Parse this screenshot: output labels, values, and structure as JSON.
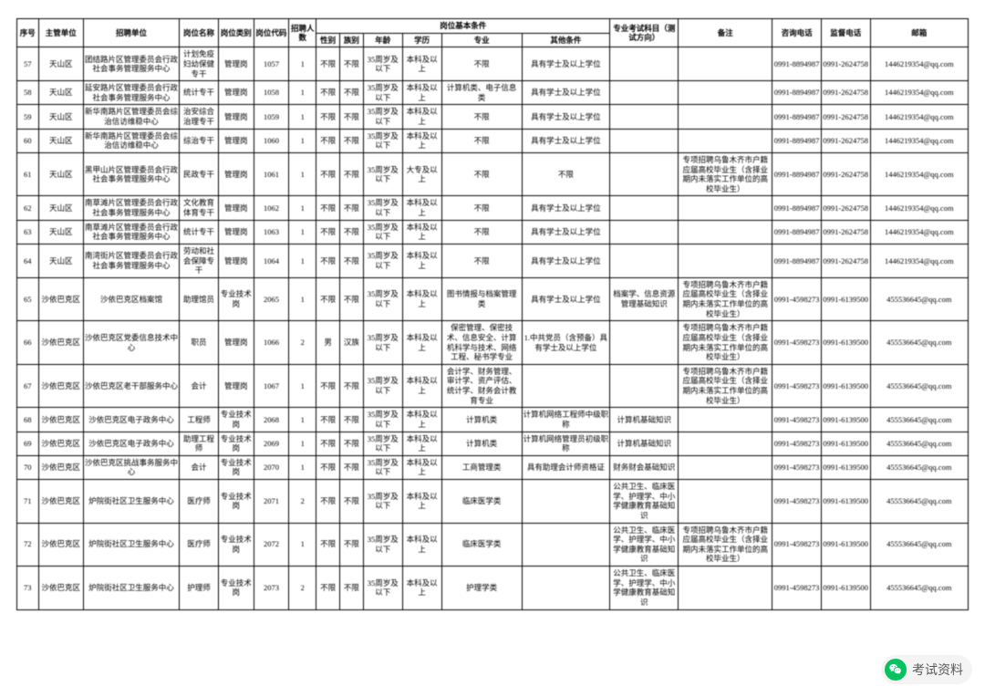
{
  "header": {
    "seq": "序号",
    "dept": "主管单位",
    "unit": "招聘单位",
    "pname": "岗位名称",
    "ptype": "岗位类别",
    "pcode": "岗位代码",
    "num": "招聘人数",
    "cond_group": "岗位基本条件",
    "sex": "性别",
    "ethn": "族别",
    "age": "年龄",
    "edu": "学历",
    "major": "专业",
    "other": "其他条件",
    "exam": "专业考试科目（测试方向）",
    "note": "备注",
    "tel1": "咨询电话",
    "tel2": "监督电话",
    "mail": "邮箱"
  },
  "rows": [
    {
      "seq": "57",
      "dept": "天山区",
      "unit": "团结路片区管理委员会行政社会事务管理服务中心",
      "pname": "计划免疫妇幼保健专干",
      "ptype": "管理岗",
      "pcode": "1057",
      "num": "1",
      "sex": "不限",
      "ethn": "不限",
      "age": "35周岁及以下",
      "edu": "本科及以上",
      "major": "不限",
      "other": "具有学士及以上学位",
      "exam": "",
      "note": "",
      "tel1": "0991-8894987",
      "tel2": "0991-2624758",
      "mail": "1446219354@qq.com"
    },
    {
      "seq": "58",
      "dept": "天山区",
      "unit": "延安路片区管理委员会行政社会事务管理服务中心",
      "pname": "统计专干",
      "ptype": "管理岗",
      "pcode": "1058",
      "num": "1",
      "sex": "不限",
      "ethn": "不限",
      "age": "35周岁及以下",
      "edu": "本科及以上",
      "major": "计算机类、电子信息类",
      "other": "具有学士及以上学位",
      "exam": "",
      "note": "",
      "tel1": "0991-8894987",
      "tel2": "0991-2624758",
      "mail": "1446219354@qq.com"
    },
    {
      "seq": "59",
      "dept": "天山区",
      "unit": "新华南路片区管理委员会综治信访维稳中心",
      "pname": "治安综合治理专干",
      "ptype": "管理岗",
      "pcode": "1059",
      "num": "1",
      "sex": "不限",
      "ethn": "不限",
      "age": "35周岁及以下",
      "edu": "本科及以上",
      "major": "不限",
      "other": "具有学士及以上学位",
      "exam": "",
      "note": "",
      "tel1": "0991-8894987",
      "tel2": "0991-2624758",
      "mail": "1446219354@qq.com"
    },
    {
      "seq": "60",
      "dept": "天山区",
      "unit": "新华南路片区管理委员会综治信访维稳中心",
      "pname": "综治专干",
      "ptype": "管理岗",
      "pcode": "1060",
      "num": "1",
      "sex": "不限",
      "ethn": "不限",
      "age": "35周岁及以下",
      "edu": "本科及以上",
      "major": "不限",
      "other": "具有学士及以上学位",
      "exam": "",
      "note": "",
      "tel1": "0991-8894987",
      "tel2": "0991-2624758",
      "mail": "1446219354@qq.com"
    },
    {
      "seq": "61",
      "dept": "天山区",
      "unit": "黑甲山片区管理委员会行政社会事务管理服务中心",
      "pname": "民政专干",
      "ptype": "管理岗",
      "pcode": "1061",
      "num": "1",
      "sex": "不限",
      "ethn": "不限",
      "age": "35周岁及以下",
      "edu": "大专及以上",
      "major": "不限",
      "other": "不限",
      "exam": "",
      "note": "专项招聘乌鲁木齐市户籍应届高校毕业生（含择业期内未落实工作单位的高校毕业生）",
      "tel1": "0991-8894987",
      "tel2": "0991-2624758",
      "mail": "1446219354@qq.com"
    },
    {
      "seq": "62",
      "dept": "天山区",
      "unit": "南草滩片区管理委员会行政社会事务管理服务中心",
      "pname": "文化教育体育专干",
      "ptype": "管理岗",
      "pcode": "1062",
      "num": "1",
      "sex": "不限",
      "ethn": "不限",
      "age": "35周岁及以下",
      "edu": "本科及以上",
      "major": "不限",
      "other": "具有学士及以上学位",
      "exam": "",
      "note": "",
      "tel1": "0991-8894987",
      "tel2": "0991-2624758",
      "mail": "1446219354@qq.com"
    },
    {
      "seq": "63",
      "dept": "天山区",
      "unit": "南草滩片区管理委员会行政社会事务管理服务中心",
      "pname": "统计专干",
      "ptype": "管理岗",
      "pcode": "1063",
      "num": "1",
      "sex": "不限",
      "ethn": "不限",
      "age": "35周岁及以下",
      "edu": "本科及以上",
      "major": "不限",
      "other": "具有学士及以上学位",
      "exam": "",
      "note": "",
      "tel1": "0991-8894987",
      "tel2": "0991-2624758",
      "mail": "1446219354@qq.com"
    },
    {
      "seq": "64",
      "dept": "天山区",
      "unit": "南湾街片区管理委员会行政社会事务管理服务中心",
      "pname": "劳动和社会保障专干",
      "ptype": "管理岗",
      "pcode": "1064",
      "num": "1",
      "sex": "不限",
      "ethn": "不限",
      "age": "35周岁及以下",
      "edu": "本科及以上",
      "major": "不限",
      "other": "具有学士及以上学位",
      "exam": "",
      "note": "",
      "tel1": "0991-8894987",
      "tel2": "0991-2624758",
      "mail": "1446219354@qq.com"
    },
    {
      "seq": "65",
      "dept": "沙依巴克区",
      "unit": "沙依巴克区档案馆",
      "pname": "助理馆员",
      "ptype": "专业技术岗",
      "pcode": "2065",
      "num": "1",
      "sex": "不限",
      "ethn": "不限",
      "age": "35周岁及以下",
      "edu": "本科及以上",
      "major": "图书情报与档案管理类",
      "other": "具有学士及以上学位",
      "exam": "档案学、信息资源管理基础知识",
      "note": "专项招聘乌鲁木齐市户籍应届高校毕业生（含择业期内未落实工作单位的高校毕业生）",
      "tel1": "0991-4598273",
      "tel2": "0991-6139500",
      "mail": "455536645@qq.com"
    },
    {
      "seq": "66",
      "dept": "沙依巴克区",
      "unit": "沙依巴克区党委信息技术中心",
      "pname": "职员",
      "ptype": "管理岗",
      "pcode": "1066",
      "num": "2",
      "sex": "男",
      "ethn": "汉族",
      "age": "35周岁及以下",
      "edu": "本科及以上",
      "major": "保密管理、保密技术、信息安全、计算机科学与技术、网络工程、秘书学专业",
      "other": "1.中共党员（含预备）具有学士及以上学位",
      "exam": "",
      "note": "专项招聘乌鲁木齐市户籍应届高校毕业生（含择业期内未落实工作单位的高校毕业生）",
      "tel1": "0991-4598273",
      "tel2": "0991-6139500",
      "mail": "455536645@qq.com"
    },
    {
      "seq": "67",
      "dept": "沙依巴克区",
      "unit": "沙依巴克区老干部服务中心",
      "pname": "会计",
      "ptype": "管理岗",
      "pcode": "1067",
      "num": "1",
      "sex": "不限",
      "ethn": "不限",
      "age": "35周岁及以下",
      "edu": "本科及以上",
      "major": "会计学、财务管理、审计学、资产评估、统计学、财务会计教育专业",
      "other": "",
      "exam": "",
      "note": "专项招聘乌鲁木齐市户籍应届高校毕业生（含择业期内未落实工作单位的高校毕业生）",
      "tel1": "0991-4598273",
      "tel2": "0991-6139500",
      "mail": "455536645@qq.com"
    },
    {
      "seq": "68",
      "dept": "沙依巴克区",
      "unit": "沙依巴克区电子政务中心",
      "pname": "工程师",
      "ptype": "专业技术岗",
      "pcode": "2068",
      "num": "1",
      "sex": "不限",
      "ethn": "不限",
      "age": "35周岁及以下",
      "edu": "本科及以上",
      "major": "计算机类",
      "other": "计算机网络工程师中级职称",
      "exam": "计算机基础知识",
      "note": "",
      "tel1": "0991-4598273",
      "tel2": "0991-6139500",
      "mail": "455536645@qq.com"
    },
    {
      "seq": "69",
      "dept": "沙依巴克区",
      "unit": "沙依巴克区电子政务中心",
      "pname": "助理工程师",
      "ptype": "专业技术岗",
      "pcode": "2069",
      "num": "1",
      "sex": "不限",
      "ethn": "不限",
      "age": "35周岁及以下",
      "edu": "本科及以上",
      "major": "计算机类",
      "other": "计算机网络管理员初级职称",
      "exam": "计算机基础知识",
      "note": "",
      "tel1": "0991-4598273",
      "tel2": "0991-6139500",
      "mail": "455536645@qq.com"
    },
    {
      "seq": "70",
      "dept": "沙依巴克区",
      "unit": "沙依巴克区挑战事务服务中心",
      "pname": "会计",
      "ptype": "专业技术岗",
      "pcode": "2070",
      "num": "1",
      "sex": "不限",
      "ethn": "不限",
      "age": "35周岁及以下",
      "edu": "本科及以上",
      "major": "工商管理类",
      "other": "具有助理会计师资格证",
      "exam": "财务财会基础知识",
      "note": "",
      "tel1": "0991-4598273",
      "tel2": "0991-6139500",
      "mail": "455536645@qq.com"
    },
    {
      "seq": "71",
      "dept": "沙依巴克区",
      "unit": "炉院街社区卫生服务中心",
      "pname": "医疗师",
      "ptype": "专业技术岗",
      "pcode": "2071",
      "num": "2",
      "sex": "不限",
      "ethn": "不限",
      "age": "35周岁及以下",
      "edu": "本科及以上",
      "major": "临床医学类",
      "other": "",
      "exam": "公共卫生、临床医学、护理学、中小学健康教育基础知识",
      "note": "",
      "tel1": "0991-4598273",
      "tel2": "0991-6139500",
      "mail": "455536645@qq.com"
    },
    {
      "seq": "72",
      "dept": "沙依巴克区",
      "unit": "炉院街社区卫生服务中心",
      "pname": "医疗师",
      "ptype": "专业技术岗",
      "pcode": "2072",
      "num": "1",
      "sex": "不限",
      "ethn": "不限",
      "age": "35周岁及以下",
      "edu": "本科及以上",
      "major": "临床医学类",
      "other": "",
      "exam": "公共卫生、临床医学、护理学、中小学健康教育基础知识",
      "note": "专项招聘乌鲁木齐市户籍应届高校毕业生（含择业期内未落实工作单位的高校毕业生）",
      "tel1": "0991-4598273",
      "tel2": "0991-6139500",
      "mail": "455536645@qq.com"
    },
    {
      "seq": "73",
      "dept": "沙依巴克区",
      "unit": "炉院街社区卫生服务中心",
      "pname": "护理师",
      "ptype": "专业技术岗",
      "pcode": "2073",
      "num": "2",
      "sex": "不限",
      "ethn": "不限",
      "age": "35周岁及以下",
      "edu": "本科及以上",
      "major": "护理学类",
      "other": "",
      "exam": "公共卫生、临床医学、护理学、中小学健康教育基础知识",
      "note": "",
      "tel1": "0991-4598273",
      "tel2": "0991-6139500",
      "mail": "455536645@qq.com"
    }
  ],
  "watermark": "考试资料"
}
